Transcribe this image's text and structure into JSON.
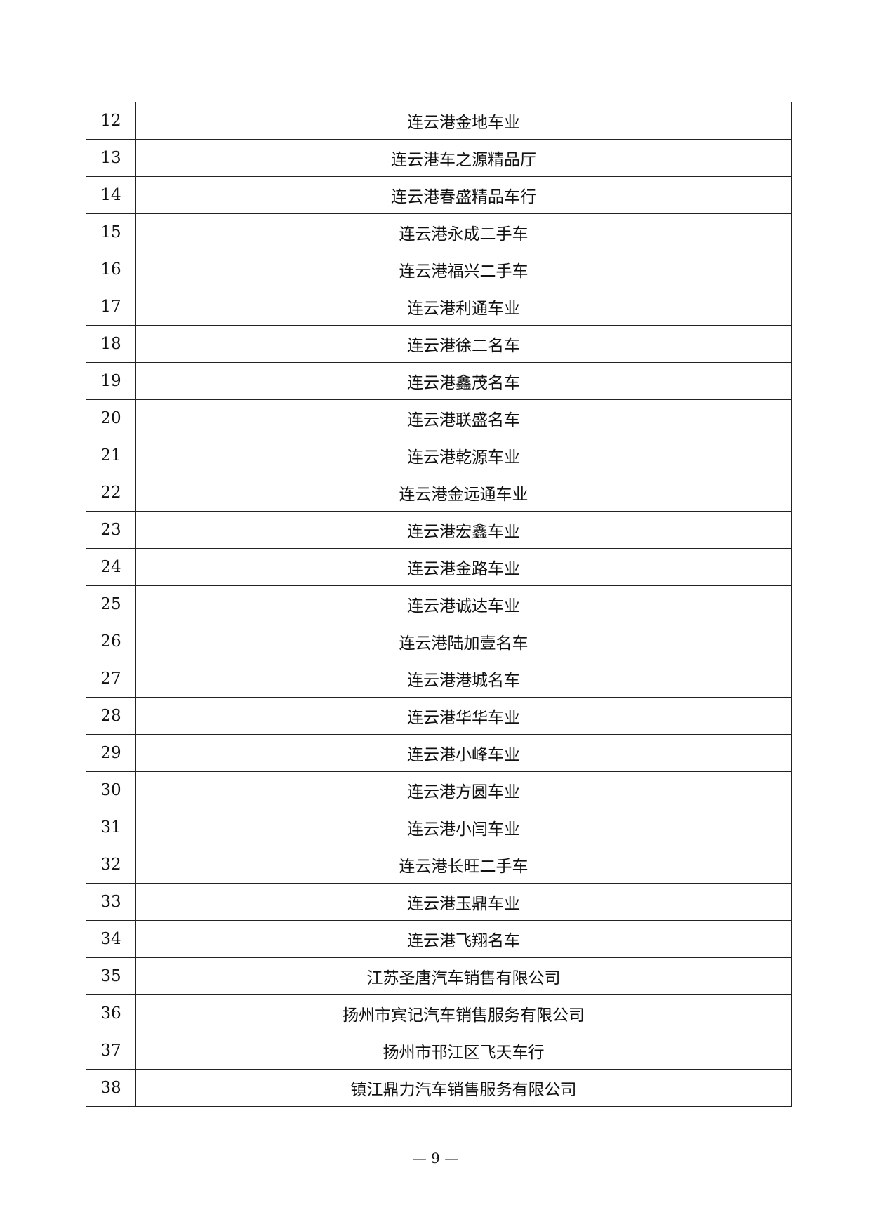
{
  "table": {
    "rows": [
      [
        "12",
        "连云港金地车业"
      ],
      [
        "13",
        "连云港车之源精品厅"
      ],
      [
        "14",
        "连云港春盛精品车行"
      ],
      [
        "15",
        "连云港永成二手车"
      ],
      [
        "16",
        "连云港福兴二手车"
      ],
      [
        "17",
        "连云港利通车业"
      ],
      [
        "18",
        "连云港徐二名车"
      ],
      [
        "19",
        "连云港鑫茂名车"
      ],
      [
        "20",
        "连云港联盛名车"
      ],
      [
        "21",
        "连云港乾源车业"
      ],
      [
        "22",
        "连云港金远通车业"
      ],
      [
        "23",
        "连云港宏鑫车业"
      ],
      [
        "24",
        "连云港金路车业"
      ],
      [
        "25",
        "连云港诚达车业"
      ],
      [
        "26",
        "连云港陆加壹名车"
      ],
      [
        "27",
        "连云港港城名车"
      ],
      [
        "28",
        "连云港华华车业"
      ],
      [
        "29",
        "连云港小峰车业"
      ],
      [
        "30",
        "连云港方圆车业"
      ],
      [
        "31",
        "连云港小闫车业"
      ],
      [
        "32",
        "连云港长旺二手车"
      ],
      [
        "33",
        "连云港玉鼎车业"
      ],
      [
        "34",
        "连云港飞翔名车"
      ],
      [
        "35",
        "江苏圣唐汽车销售有限公司"
      ],
      [
        "36",
        "扬州市宾记汽车销售服务有限公司"
      ],
      [
        "37",
        "扬州市邗江区飞天车行"
      ],
      [
        "38",
        "镇江鼎力汽车销售服务有限公司"
      ]
    ]
  },
  "footer": {
    "page_number": "— 9 —"
  }
}
